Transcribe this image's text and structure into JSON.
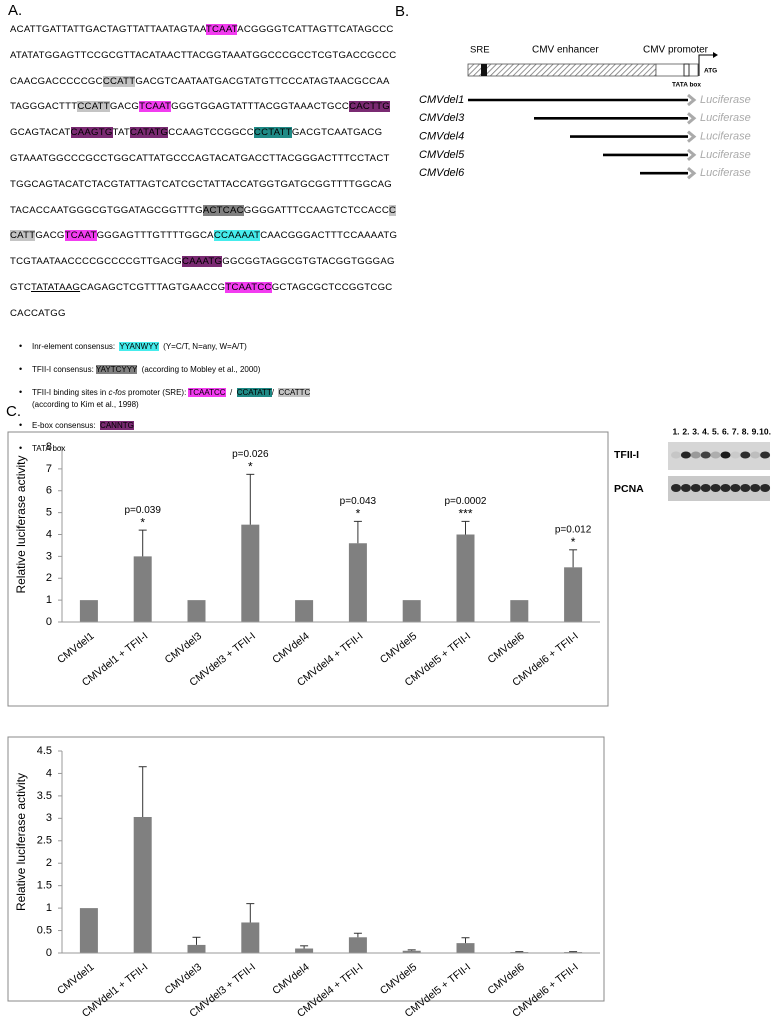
{
  "panel_a": {
    "label": "A.",
    "sequence": [
      [
        "ACATTGATTATTGACTAGTTATTAATAGTAA",
        {
          "text": "TCAAT",
          "highlight": "#f23cf0"
        },
        "ACGGGGTCATTAGTTCATAGCCC"
      ],
      [
        "ATATATGGAGTTCCGCGTTACATAACTTACGGTAAATGGCCCGCCTCGTGACCGCCC"
      ],
      [
        "CAACGACCCCCGC",
        {
          "text": "CCATT",
          "highlight": "#c4c4c4"
        },
        "GACGTCAATAATGACGTATGTTCCCATAGTAACGCCAA"
      ],
      [
        "TAGGGACTTT",
        {
          "text": "CCATT",
          "highlight": "#c4c4c4"
        },
        "GACG",
        {
          "text": "TCAAT",
          "highlight": "#f23cf0"
        },
        "GGGTGGAGTATTTACGGTAAACTGCC",
        {
          "text": "CACTTG",
          "highlight": "#7a2a72"
        }
      ],
      [
        "GCAGTACAT",
        {
          "text": "CAAGTG",
          "highlight": "#7a2a72"
        },
        "TAT",
        {
          "text": "CATATG",
          "highlight": "#7a2a72"
        },
        "CCAAGTCCGGCC",
        {
          "text": "CCTATT",
          "highlight": "#1f8a86"
        },
        "GACGTCAATGACG"
      ],
      [
        "GTAAATGGCCCGCCTGGCATTATGCCCAGTACATGACCTTACGGGACTTTCCTACT"
      ],
      [
        "TGGCAGTACATCTACGTATTAGTCATCGCTATTACCATGGTGATGCGGTTTTGGCAG"
      ],
      [
        "TACACCAATGGGCGTGGATAGCGGTTTG",
        {
          "text": "ACTCAC",
          "highlight": "#808080"
        },
        "GGGGATTTCCAAGTCTCCACC",
        {
          "text": "C",
          "highlight": "#c4c4c4"
        }
      ],
      [
        {
          "text": "CATT",
          "highlight": "#c4c4c4"
        },
        "GACG",
        {
          "text": "TCAAT",
          "highlight": "#f23cf0"
        },
        "GGGAGTTTGTTTTGGCA",
        {
          "text": "CCAAAAT",
          "highlight": "#45ecec"
        },
        "CAACGGGACTTTCCAAAATG"
      ],
      [
        "TCGTAATAACCCCGCCCCGTTGACG",
        {
          "text": "CAAATG",
          "highlight": "#7a2a72"
        },
        "GGCGGTAGGCGTGTACGGTGGGAG"
      ],
      [
        "GTC",
        {
          "text": "TATATAAG",
          "underline": true
        },
        "CAGAGCTCGTTTAGTGAACCG",
        {
          "text": "TCAATCC",
          "highlight": "#f23cf0"
        },
        "GCTAGCGCTCCGGTCGC"
      ],
      [
        "CACCATGG"
      ]
    ],
    "legend": [
      [
        [
          "Inr-element consensus:  ",
          {
            "text": "YYANWYY",
            "highlight": "#45ecec"
          },
          "  (Y=C/T, N=any, W=A/T)"
        ]
      ],
      [
        [
          "TFII-I consensus: ",
          {
            "text": "YAYTCYYY",
            "highlight": "#808080"
          },
          "  (according to Mobley et al., 2000)"
        ]
      ],
      [
        [
          "TFII-I binding sites in ",
          {
            "text": "c-fos",
            "italic": true
          },
          " promoter (SRE): ",
          {
            "text": "TCAATCC",
            "highlight": "#f23cf0"
          },
          "  /  ",
          {
            "text": "CCATATT",
            "highlight": "#1f8a86"
          },
          "/  ",
          {
            "text": "CCATTC",
            "highlight": "#c4c4c4"
          }
        ],
        [
          "(according to Kim et al., 1998)"
        ]
      ],
      [
        [
          "E-box consensus:  ",
          {
            "text": "CANNTG",
            "highlight": "#7a2a72"
          }
        ]
      ],
      [
        [
          "TATA box"
        ]
      ]
    ]
  },
  "panel_b": {
    "label": "B.",
    "elements": {
      "sre": "SRE",
      "enhancer": "CMV enhancer",
      "promoter": "CMV promoter",
      "tata": "TATA box",
      "atg": "ATG"
    },
    "constructs": [
      {
        "name": "CMVdel1",
        "reporter": "Luciferase"
      },
      {
        "name": "CMVdel3",
        "reporter": "Luciferase"
      },
      {
        "name": "CMVdel4",
        "reporter": "Luciferase"
      },
      {
        "name": "CMVdel5",
        "reporter": "Luciferase"
      },
      {
        "name": "CMVdel6",
        "reporter": "Luciferase"
      }
    ]
  },
  "panel_c": {
    "label": "C."
  },
  "western_blot": {
    "lanes": [
      "1.",
      "2.",
      "3.",
      "4.",
      "5.",
      "6.",
      "7.",
      "8.",
      "9.",
      "10."
    ],
    "rows": [
      "TFII-I",
      "PCNA"
    ]
  },
  "chart_data": [
    {
      "type": "bar",
      "y_label": "Relative luciferase activity",
      "categories": [
        "CMVdel1",
        "CMVdel1 + TFII-I",
        "CMVdel3",
        "CMVdel3 + TFII-I",
        "CMVdel4",
        "CMVdel4 + TFII-I",
        "CMVdel5",
        "CMVdel5 + TFII-I",
        "CMVdel6",
        "CMVdel6 + TFII-I"
      ],
      "values": [
        1,
        3.0,
        1,
        4.45,
        1,
        3.6,
        1,
        4.0,
        1,
        2.5
      ],
      "errors": [
        null,
        1.2,
        null,
        2.3,
        null,
        1.0,
        null,
        0.6,
        null,
        0.8
      ],
      "p_values": [
        null,
        "p=0.039",
        null,
        "p=0.026",
        null,
        "p=0.043",
        null,
        "p=0.0002",
        null,
        "p=0.012"
      ],
      "significance": [
        null,
        "*",
        null,
        "*",
        null,
        "*",
        null,
        "***",
        null,
        "*"
      ],
      "color": "#808080",
      "ylim": [
        0,
        8
      ],
      "yticks": [
        0,
        1,
        2,
        3,
        4,
        5,
        6,
        7,
        8
      ],
      "grid": false
    },
    {
      "type": "bar",
      "y_label": "Relative luciferase activity",
      "categories": [
        "CMVdel1",
        "CMVdel1 + TFII-I",
        "CMVdel3",
        "CMVdel3 + TFII-I",
        "CMVdel4",
        "CMVdel4 + TFII-I",
        "CMVdel5",
        "CMVdel5 + TFII-I",
        "CMVdel6",
        "CMVdel6 + TFII-I"
      ],
      "values": [
        1,
        3.03,
        0.18,
        0.68,
        0.1,
        0.35,
        0.05,
        0.22,
        0.02,
        0.02
      ],
      "errors": [
        null,
        1.12,
        0.17,
        0.42,
        0.06,
        0.09,
        0.02,
        0.12,
        0.01,
        0.01
      ],
      "color": "#808080",
      "ylim": [
        0,
        4.5
      ],
      "yticks": [
        0,
        0.5,
        1,
        1.5,
        2,
        2.5,
        3,
        3.5,
        4,
        4.5
      ],
      "grid": false
    }
  ]
}
